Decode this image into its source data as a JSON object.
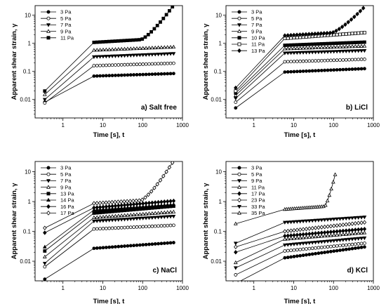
{
  "chart_data": [
    {
      "type": "line",
      "panel_label": "a) Salt free",
      "xlabel": "Time [s], t",
      "ylabel": "Apparent shear strain, γ",
      "x_scale": "log",
      "y_scale": "log",
      "xlim": [
        0.2,
        1000
      ],
      "ylim": [
        0.0022,
        22
      ],
      "x_ticks": [
        "1",
        "10",
        "100",
        "1000"
      ],
      "y_ticks": [
        "0.01",
        "0.1",
        "1",
        "10"
      ],
      "legend_position": "top-left",
      "series": [
        {
          "name": "3 Pa",
          "marker": "filled-circle",
          "t1": 0.008,
          "t2": 0.068,
          "t3": 0.084
        },
        {
          "name": "5 Pa",
          "marker": "open-circle",
          "t1": 0.0075,
          "t2": 0.16,
          "t3": 0.195
        },
        {
          "name": "7 Pa",
          "marker": "filled-triangle-down",
          "t1": 0.01,
          "t2": 0.33,
          "t3": 0.43
        },
        {
          "name": "9 Pa",
          "marker": "open-triangle-up",
          "t1": 0.015,
          "t2": 0.57,
          "t3": 0.74
        },
        {
          "name": "11 Pa",
          "marker": "filled-square",
          "t1": 0.02,
          "t2": 1.08,
          "t3": 20
        }
      ]
    },
    {
      "type": "line",
      "panel_label": "b) LiCl",
      "xlabel": "Time [s], t",
      "ylabel": "Apparent shear strain, γ",
      "x_scale": "log",
      "y_scale": "log",
      "xlim": [
        0.2,
        1000
      ],
      "ylim": [
        0.0022,
        22
      ],
      "x_ticks": [
        "1",
        "10",
        "100",
        "1000"
      ],
      "y_ticks": [
        "0.01",
        "0.1",
        "1",
        "10"
      ],
      "legend_position": "top-left",
      "series": [
        {
          "name": "3 Pa",
          "marker": "filled-circle",
          "t1": 0.005,
          "t2": 0.095,
          "t3": 0.125
        },
        {
          "name": "5 Pa",
          "marker": "open-circle",
          "t1": 0.008,
          "t2": 0.22,
          "t3": 0.27
        },
        {
          "name": "7 Pa",
          "marker": "filled-triangle-down",
          "t1": 0.011,
          "t2": 0.45,
          "t3": 0.55
        },
        {
          "name": "9 Pa",
          "marker": "open-triangle-up",
          "t1": 0.014,
          "t2": 0.64,
          "t3": 0.8
        },
        {
          "name": "10 Pa",
          "marker": "filled-square",
          "t1": 0.017,
          "t2": 0.85,
          "t3": 1.1
        },
        {
          "name": "11 Pa",
          "marker": "open-square",
          "t1": 0.02,
          "t2": 1.5,
          "t3": 2.4
        },
        {
          "name": "13 Pa",
          "marker": "filled-diamond",
          "t1": 0.026,
          "t2": 1.9,
          "t3": 18
        }
      ]
    },
    {
      "type": "line",
      "panel_label": "c) NaCl",
      "xlabel": "Time [s], t",
      "ylabel": "Apparent shear strain, γ",
      "x_scale": "log",
      "y_scale": "log",
      "xlim": [
        0.2,
        1000
      ],
      "ylim": [
        0.0022,
        22
      ],
      "x_ticks": [
        "1",
        "10",
        "100",
        "1000"
      ],
      "y_ticks": [
        "0.01",
        "0.1",
        "1",
        "10"
      ],
      "legend_position": "top-left",
      "series": [
        {
          "name": "3 Pa",
          "marker": "filled-circle",
          "t1": 0.0025,
          "t2": 0.027,
          "t3": 0.042
        },
        {
          "name": "5 Pa",
          "marker": "open-circle",
          "t1": 0.0065,
          "t2": 0.12,
          "t3": 0.16
        },
        {
          "name": "7 Pa",
          "marker": "filled-triangle-down",
          "t1": 0.0085,
          "t2": 0.22,
          "t3": 0.32
        },
        {
          "name": "9 Pa",
          "marker": "open-triangle-up",
          "t1": 0.014,
          "t2": 0.29,
          "t3": 0.45
        },
        {
          "name": "13 Pa",
          "marker": "filled-square",
          "t1": 0.022,
          "t2": 0.41,
          "t3": 0.7
        },
        {
          "name": "14 Pa",
          "marker": "filled-triangle-up",
          "t1": 0.03,
          "t2": 0.52,
          "t3": 0.8
        },
        {
          "name": "16 Pa",
          "marker": "filled-diamond",
          "t1": 0.09,
          "t2": 0.62,
          "t3": 1.05
        },
        {
          "name": "17 Pa",
          "marker": "open-diamond",
          "t1": 0.13,
          "t2": 0.87,
          "t3": 20
        }
      ]
    },
    {
      "type": "line",
      "panel_label": "d) KCl",
      "xlabel": "Time [s], t",
      "ylabel": "Apparent shear strain, γ",
      "x_scale": "log",
      "y_scale": "log",
      "xlim": [
        0.2,
        1000
      ],
      "ylim": [
        0.0022,
        22
      ],
      "x_ticks": [
        "1",
        "10",
        "100",
        "1000"
      ],
      "y_ticks": [
        "0.01",
        "0.1",
        "1",
        "10"
      ],
      "legend_position": "top-left",
      "series": [
        {
          "name": "3 Pa",
          "marker": "filled-circle",
          "t1": 0.0018,
          "t2": 0.013,
          "t3": 0.03
        },
        {
          "name": "5 Pa",
          "marker": "open-circle",
          "t1": 0.0035,
          "t2": 0.022,
          "t3": 0.04
        },
        {
          "name": "9 Pa",
          "marker": "filled-triangle-down",
          "t1": 0.006,
          "t2": 0.035,
          "t3": 0.06
        },
        {
          "name": "11 Pa",
          "marker": "open-triangle-up",
          "t1": 0.009,
          "t2": 0.055,
          "t3": 0.09
        },
        {
          "name": "17 Pa",
          "marker": "filled-diamond",
          "t1": 0.02,
          "t2": 0.07,
          "t3": 0.12
        },
        {
          "name": "23 Pa",
          "marker": "open-diamond",
          "t1": 0.03,
          "t2": 0.1,
          "t3": 0.2
        },
        {
          "name": "33 Pa",
          "marker": "filled-triangle-down",
          "t1": 0.04,
          "t2": 0.2,
          "t3": 0.3
        },
        {
          "name": "35 Pa",
          "marker": "open-triangle-up",
          "t1": 0.18,
          "t2": 0.55,
          "t3": 8
        }
      ]
    }
  ]
}
